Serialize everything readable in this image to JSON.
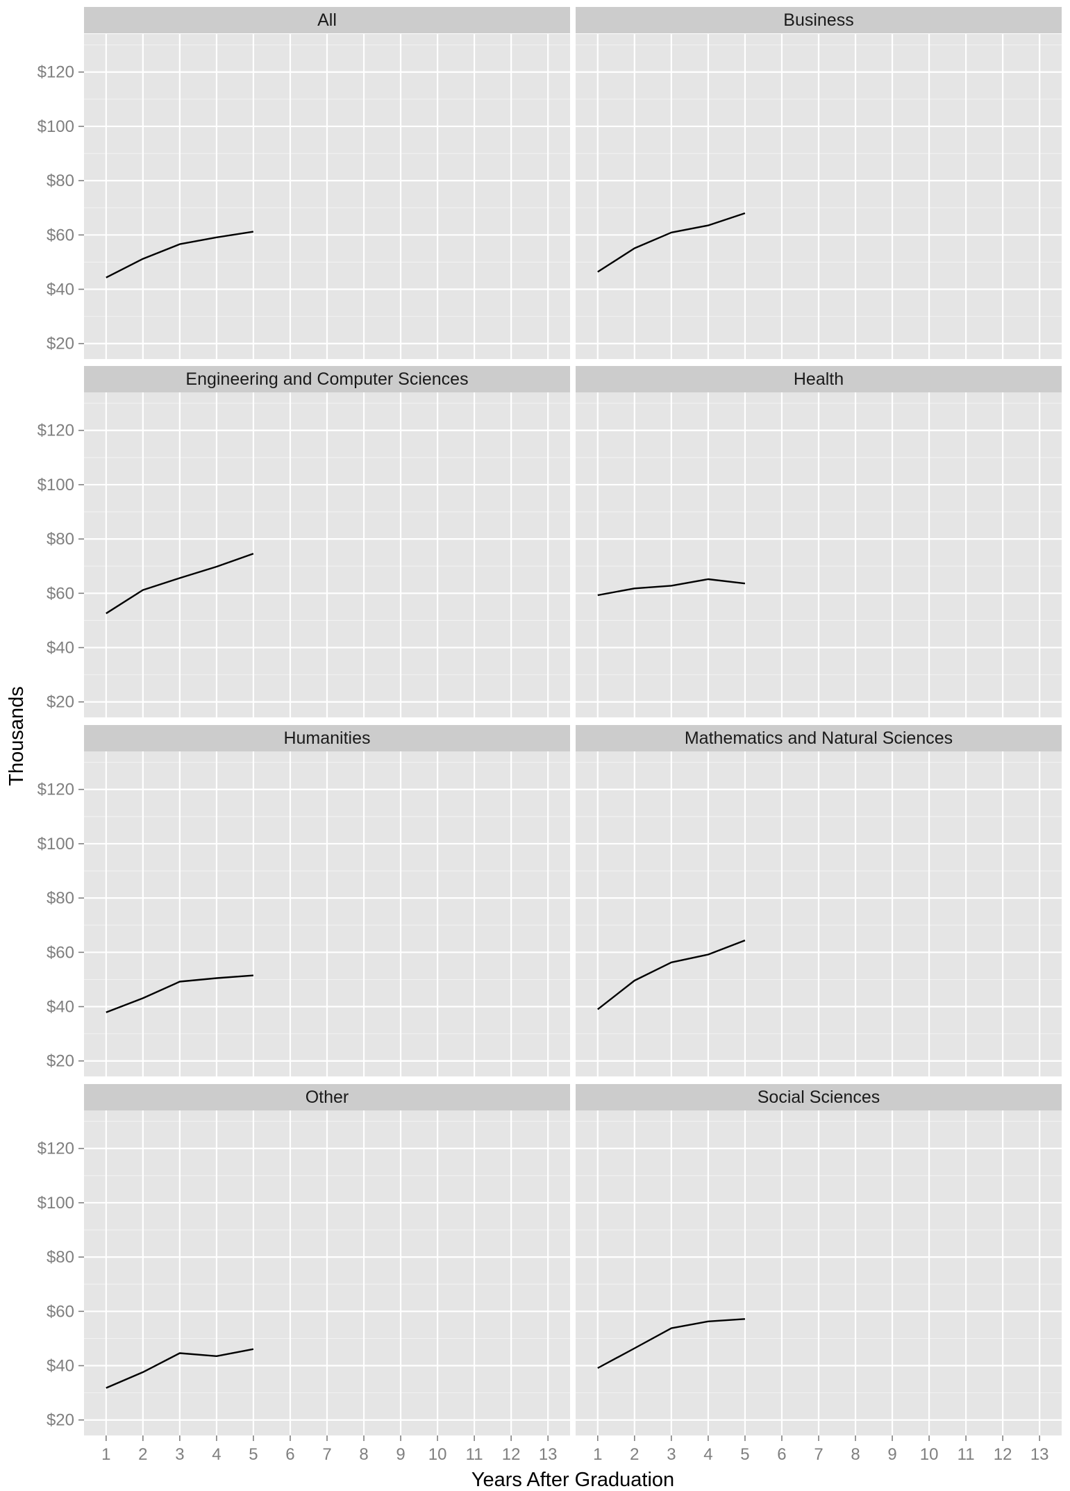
{
  "chart_data": {
    "type": "line",
    "title": "",
    "xlabel": "Years After Graduation",
    "ylabel": "Thousands",
    "x_ticks": [
      1,
      2,
      3,
      4,
      5,
      6,
      7,
      8,
      9,
      10,
      11,
      12,
      13
    ],
    "xlim": [
      0.4,
      13.6
    ],
    "y_ticks": [
      20,
      40,
      60,
      80,
      100,
      120
    ],
    "y_tick_labels": [
      "$20",
      "$40",
      "$60",
      "$80",
      "$100",
      "$120"
    ],
    "ylim": [
      14.3,
      134
    ],
    "grid": true,
    "layout": "facet-grid",
    "facet_rows": 4,
    "facet_cols": 2,
    "facets": [
      {
        "name": "All",
        "x": [
          1,
          2,
          3,
          4,
          5
        ],
        "y": [
          44.3,
          51.2,
          56.6,
          59.1,
          61.2
        ]
      },
      {
        "name": "Business",
        "x": [
          1,
          2,
          3,
          4,
          5
        ],
        "y": [
          46.4,
          55.1,
          60.9,
          63.5,
          68.0
        ]
      },
      {
        "name": "Engineering and Computer Sciences",
        "x": [
          1,
          2,
          3,
          4,
          5
        ],
        "y": [
          52.6,
          61.2,
          65.6,
          69.8,
          74.6
        ]
      },
      {
        "name": "Health",
        "x": [
          1,
          2,
          3,
          4,
          5
        ],
        "y": [
          59.3,
          61.8,
          62.8,
          65.2,
          63.6
        ]
      },
      {
        "name": "Humanities",
        "x": [
          1,
          2,
          3,
          4,
          5
        ],
        "y": [
          37.9,
          43.1,
          49.2,
          50.5,
          51.5
        ]
      },
      {
        "name": "Mathematics and Natural Sciences",
        "x": [
          1,
          2,
          3,
          4,
          5
        ],
        "y": [
          39.0,
          49.6,
          56.3,
          59.2,
          64.4
        ]
      },
      {
        "name": "Other",
        "x": [
          1,
          2,
          3,
          4,
          5
        ],
        "y": [
          31.8,
          37.6,
          44.6,
          43.5,
          46.1
        ]
      },
      {
        "name": "Social Sciences",
        "x": [
          1,
          2,
          3,
          4,
          5
        ],
        "y": [
          39.1,
          46.4,
          53.8,
          56.3,
          57.2
        ]
      }
    ]
  }
}
